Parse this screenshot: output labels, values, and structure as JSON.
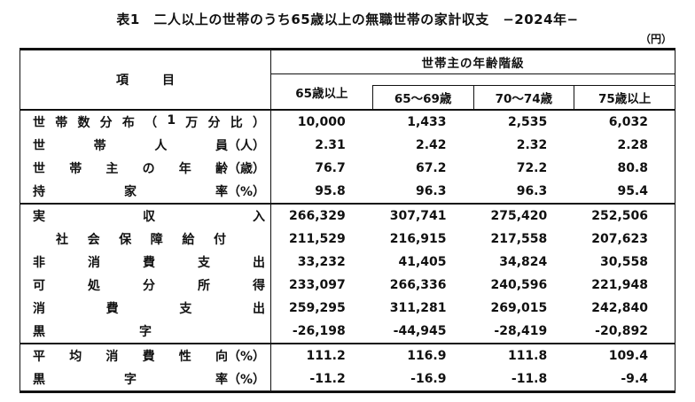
{
  "page": {
    "title": "表1　二人以上の世帯のうち65歳以上の無職世帯の家計収支　−2024年−",
    "unit_note": "（円）"
  },
  "table": {
    "item_header": "項　目",
    "age_group_header": "世帯主の年齢階級",
    "columns": [
      "65歳以上",
      "65～69歳",
      "70～74歳",
      "75歳以上"
    ],
    "rows": [
      {
        "label": "世帯数分布（1万分比）",
        "unit": "",
        "values": [
          "10,000",
          "1,433",
          "2,535",
          "6,032"
        ]
      },
      {
        "label": "世帯人員",
        "unit": "（人）",
        "values": [
          "2.31",
          "2.42",
          "2.32",
          "2.28"
        ]
      },
      {
        "label": "世帯主の年齢",
        "unit": "（歳）",
        "values": [
          "76.7",
          "67.2",
          "72.2",
          "80.8"
        ]
      },
      {
        "label": "持家率",
        "unit": "（%）",
        "values": [
          "95.8",
          "96.3",
          "96.3",
          "95.4"
        ]
      },
      {
        "label": "実収入",
        "unit": "",
        "values": [
          "266,329",
          "307,741",
          "275,420",
          "252,506"
        ]
      },
      {
        "label": "社会保障給付",
        "unit": "",
        "values": [
          "211,529",
          "216,915",
          "217,558",
          "207,623"
        ]
      },
      {
        "label": "非消費支出",
        "unit": "",
        "values": [
          "33,232",
          "41,405",
          "34,824",
          "30,558"
        ]
      },
      {
        "label": "可処分所得",
        "unit": "",
        "values": [
          "233,097",
          "266,336",
          "240,596",
          "221,948"
        ]
      },
      {
        "label": "消費支出",
        "unit": "",
        "values": [
          "259,295",
          "311,281",
          "269,015",
          "242,840"
        ]
      },
      {
        "label": "黒字",
        "unit": "",
        "values": [
          "-26,198",
          "-44,945",
          "-28,419",
          "-20,892"
        ]
      },
      {
        "label": "平均消費性向",
        "unit": "（%）",
        "values": [
          "111.2",
          "116.9",
          "111.8",
          "109.4"
        ]
      },
      {
        "label": "黒字率",
        "unit": "（%）",
        "values": [
          "-11.2",
          "-16.9",
          "-11.8",
          "-9.4"
        ]
      }
    ]
  },
  "chart_data": {
    "type": "table",
    "title": "表1　二人以上の世帯のうち65歳以上の無職世帯の家計収支　−2024年−",
    "unit": "円",
    "column_group_header": "世帯主の年齢階級",
    "columns": [
      "項目",
      "65歳以上",
      "65～69歳",
      "70～74歳",
      "75歳以上"
    ],
    "rows": [
      [
        "世帯数分布（1万分比）",
        10000,
        1433,
        2535,
        6032
      ],
      [
        "世帯人員（人）",
        2.31,
        2.42,
        2.32,
        2.28
      ],
      [
        "世帯主の年齢（歳）",
        76.7,
        67.2,
        72.2,
        80.8
      ],
      [
        "持家率（%）",
        95.8,
        96.3,
        96.3,
        95.4
      ],
      [
        "実収入",
        266329,
        307741,
        275420,
        252506
      ],
      [
        "社会保障給付",
        211529,
        216915,
        217558,
        207623
      ],
      [
        "非消費支出",
        33232,
        41405,
        34824,
        30558
      ],
      [
        "可処分所得",
        233097,
        266336,
        240596,
        221948
      ],
      [
        "消費支出",
        259295,
        311281,
        269015,
        242840
      ],
      [
        "黒字",
        -26198,
        -44945,
        -28419,
        -20892
      ],
      [
        "平均消費性向（%）",
        111.2,
        116.9,
        111.8,
        109.4
      ],
      [
        "黒字率（%）",
        -11.2,
        -16.9,
        -11.8,
        -9.4
      ]
    ]
  }
}
